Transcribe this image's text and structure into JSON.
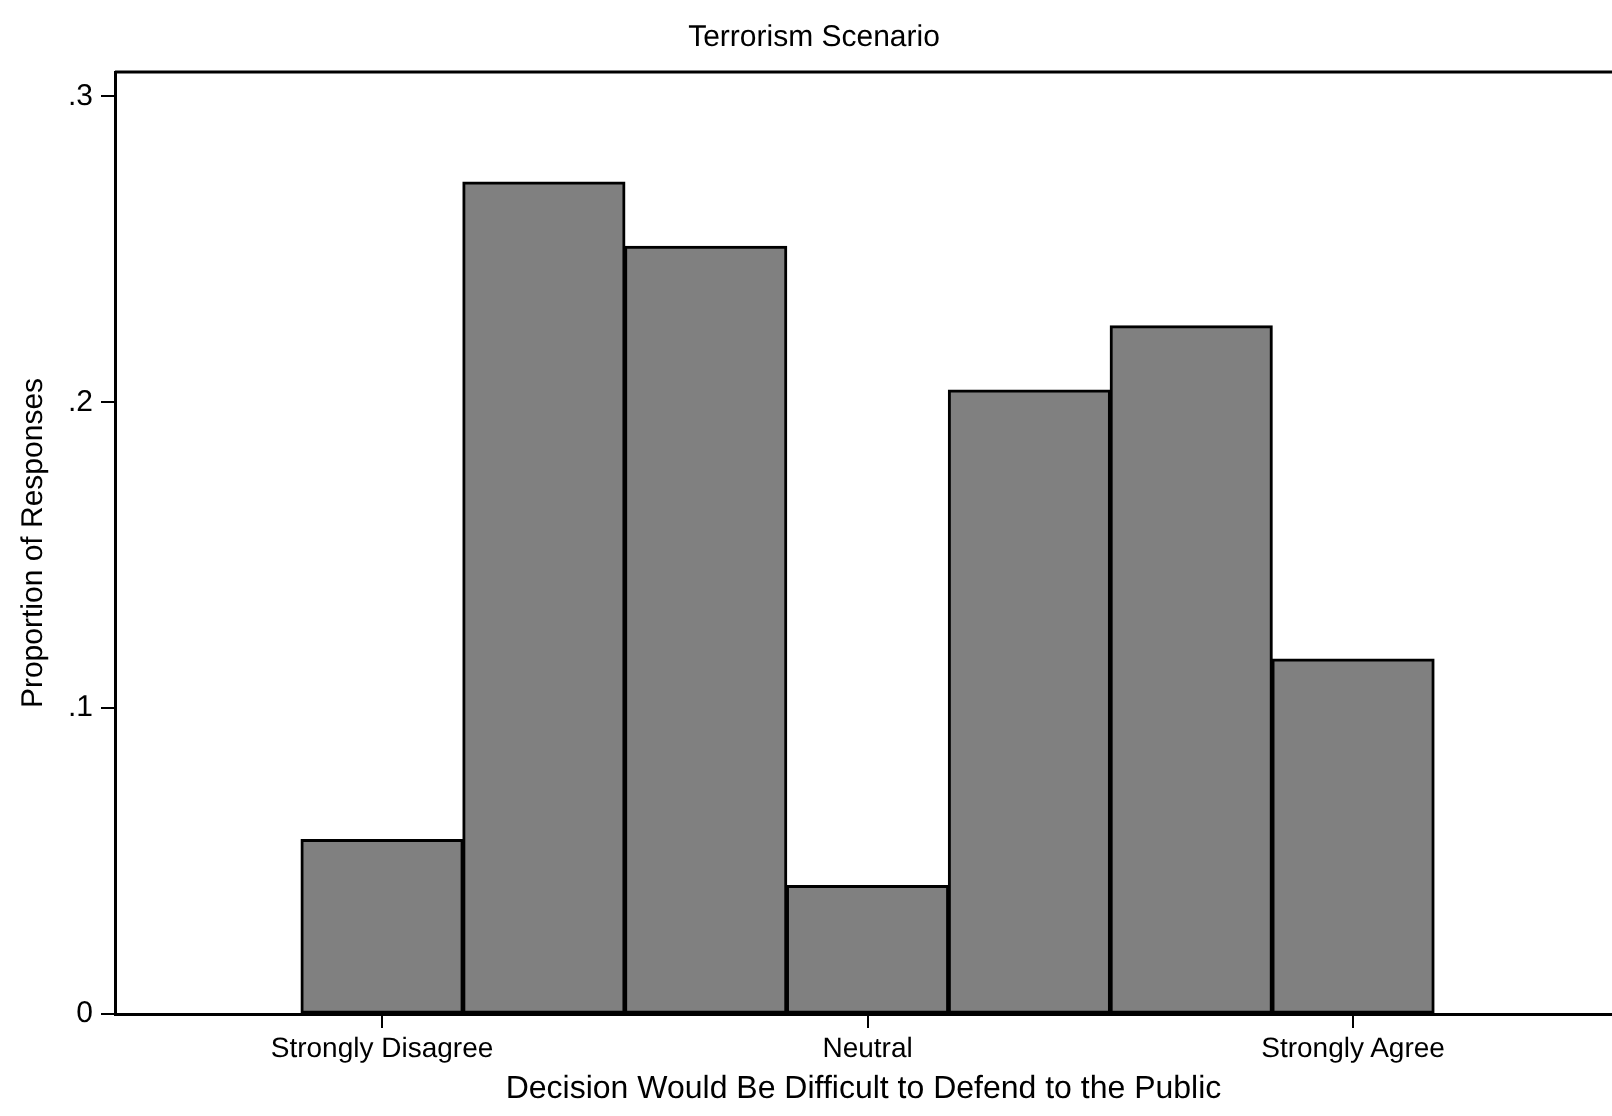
{
  "chart_data": {
    "type": "bar",
    "title": "Terrorism Scenario",
    "xlabel": "Decision Would Be Difficult to Defend to the Public",
    "ylabel": "Proportion of Responses",
    "categories": [
      "Strongly Disagree",
      null,
      null,
      "Neutral",
      null,
      null,
      "Strongly Agree"
    ],
    "values": [
      0.057,
      0.272,
      0.251,
      0.042,
      0.204,
      0.225,
      0.116
    ],
    "color": "#808080",
    "ylim": [
      0,
      0.308
    ],
    "yticks": [
      {
        "value": 0,
        "label": "0"
      },
      {
        "value": 0.1,
        "label": ".1"
      },
      {
        "value": 0.2,
        "label": ".2"
      },
      {
        "value": 0.3,
        "label": ".3"
      }
    ]
  }
}
